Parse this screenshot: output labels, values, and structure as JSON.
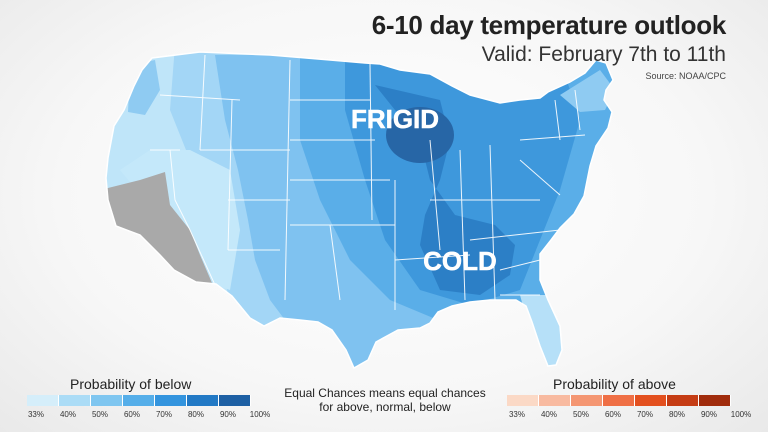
{
  "header": {
    "title": "6-10 day temperature outlook",
    "subtitle": "Valid: February 7th to 11th",
    "source": "Source: NOAA/CPC"
  },
  "map": {
    "labels": {
      "frigid": "FRIGID",
      "cold": "COLD"
    },
    "colors": {
      "equal_chances": "#a9a9a9",
      "b33": "#c4e8fa",
      "b40": "#a3d6f6",
      "b50": "#7fc2f0",
      "b60": "#5aaee8",
      "b70": "#3e98dc",
      "b80": "#2c7fc6",
      "b90": "#2766a6"
    }
  },
  "legend": {
    "below": {
      "title": "Probability of below",
      "ticks": [
        "33%",
        "40%",
        "50%",
        "60%",
        "70%",
        "80%",
        "90%",
        "100%"
      ],
      "colors": [
        "#d5eefa",
        "#abdcf6",
        "#7fc6f0",
        "#55aee9",
        "#3394de",
        "#2279c5",
        "#1e60a4"
      ]
    },
    "above": {
      "title": "Probability of above",
      "ticks": [
        "33%",
        "40%",
        "50%",
        "60%",
        "70%",
        "80%",
        "90%",
        "100%"
      ],
      "colors": [
        "#fbd9c6",
        "#f8baa0",
        "#f49672",
        "#ef6f45",
        "#e3501f",
        "#c53c14",
        "#a02c0c"
      ]
    },
    "equal_chances_note": "Equal Chances means equal chances for above, normal, below"
  }
}
